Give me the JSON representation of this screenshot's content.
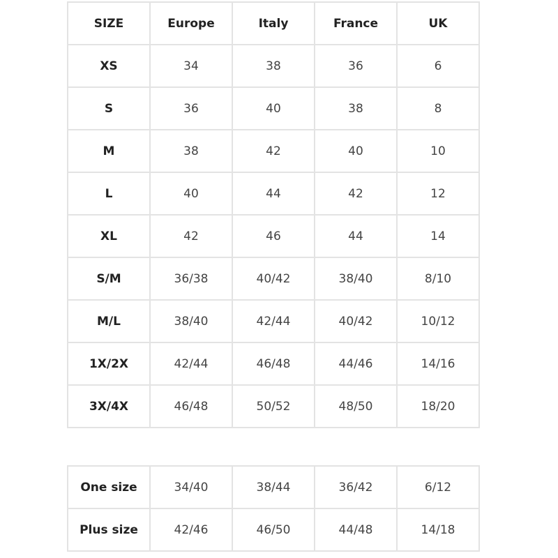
{
  "size_table": {
    "headers": [
      "SIZE",
      "Europe",
      "Italy",
      "France",
      "UK"
    ],
    "rows": [
      [
        "XS",
        "34",
        "38",
        "36",
        "6"
      ],
      [
        "S",
        "36",
        "40",
        "38",
        "8"
      ],
      [
        "M",
        "38",
        "42",
        "40",
        "10"
      ],
      [
        "L",
        "40",
        "44",
        "42",
        "12"
      ],
      [
        "XL",
        "42",
        "46",
        "44",
        "14"
      ],
      [
        "S/M",
        "36/38",
        "40/42",
        "38/40",
        "8/10"
      ],
      [
        "M/L",
        "38/40",
        "42/44",
        "40/42",
        "10/12"
      ],
      [
        "1X/2X",
        "42/44",
        "46/48",
        "44/46",
        "14/16"
      ],
      [
        "3X/4X",
        "46/48",
        "50/52",
        "48/50",
        "18/20"
      ]
    ]
  },
  "range_table": {
    "rows": [
      [
        "One size",
        "34/40",
        "38/44",
        "36/42",
        "6/12"
      ],
      [
        "Plus size",
        "42/46",
        "46/50",
        "44/48",
        "14/18"
      ]
    ]
  }
}
